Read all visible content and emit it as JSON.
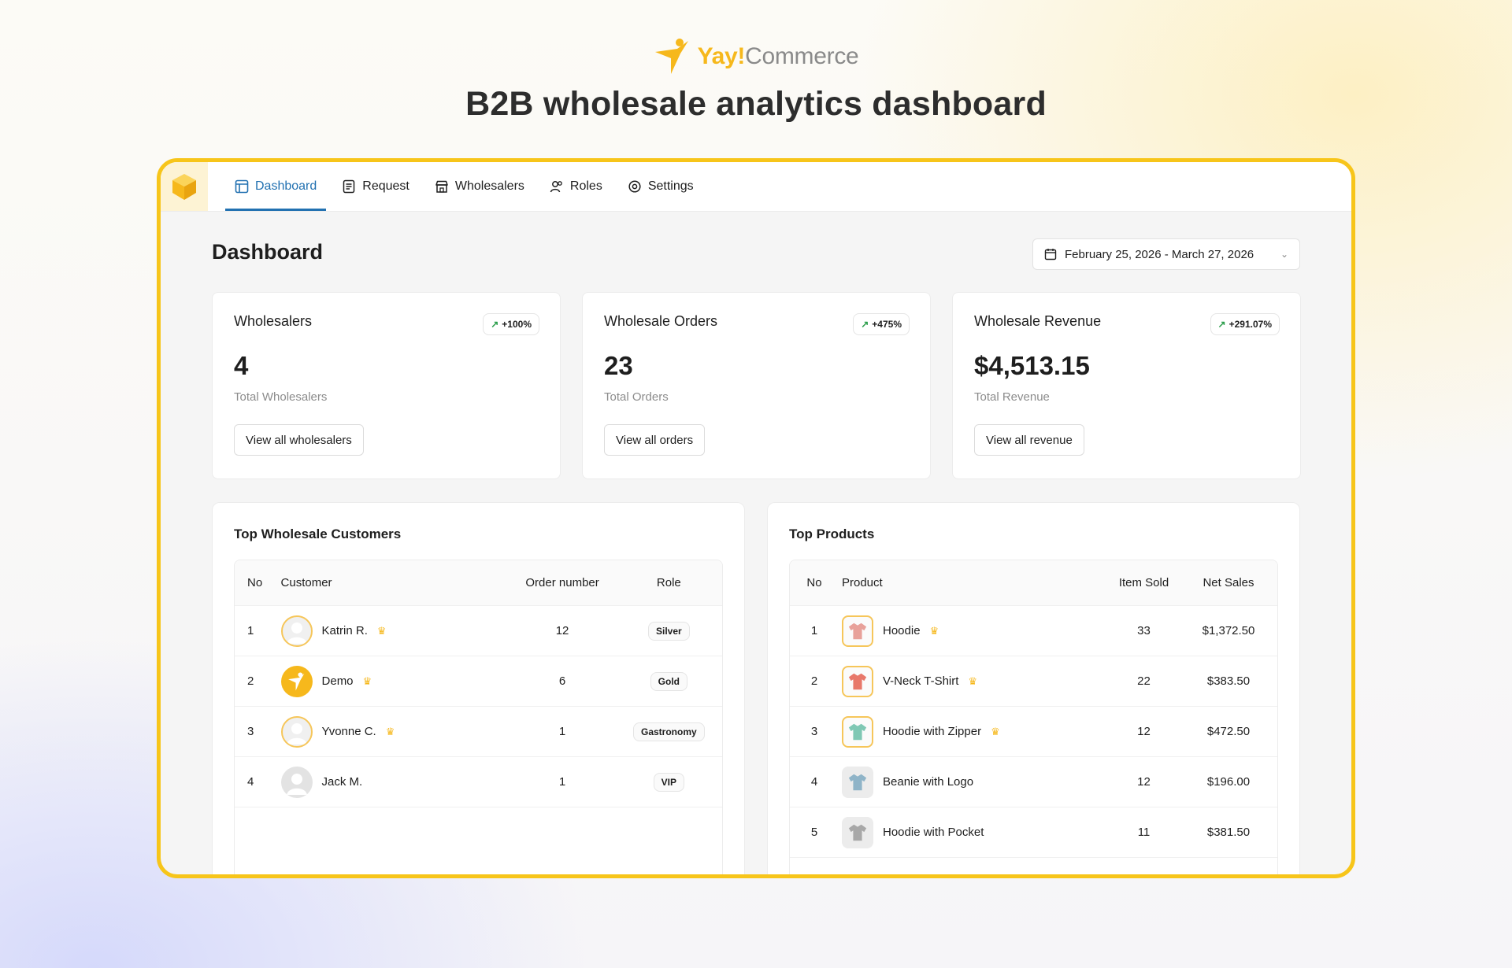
{
  "brand": {
    "yay": "Yay!",
    "commerce": "Commerce",
    "accent": "#f6b81c"
  },
  "headline": "B2B wholesale analytics dashboard",
  "nav": [
    {
      "label": "Dashboard",
      "icon": "layout-icon",
      "active": true
    },
    {
      "label": "Request",
      "icon": "document-icon"
    },
    {
      "label": "Wholesalers",
      "icon": "store-icon"
    },
    {
      "label": "Roles",
      "icon": "users-icon"
    },
    {
      "label": "Settings",
      "icon": "gear-icon"
    }
  ],
  "page": {
    "title": "Dashboard",
    "date_range": "February 25, 2026 - March 27, 2026"
  },
  "stats": [
    {
      "title": "Wholesalers",
      "change": "+100%",
      "value": "4",
      "sub": "Total Wholesalers",
      "button": "View all wholesalers"
    },
    {
      "title": "Wholesale Orders",
      "change": "+475%",
      "value": "23",
      "sub": "Total Orders",
      "button": "View all orders"
    },
    {
      "title": "Wholesale Revenue",
      "change": "+291.07%",
      "value": "$4,513.15",
      "sub": "Total Revenue",
      "button": "View all revenue"
    }
  ],
  "customers": {
    "title": "Top Wholesale Customers",
    "headers": {
      "no": "No",
      "customer": "Customer",
      "orders": "Order number",
      "role": "Role"
    },
    "rows": [
      {
        "no": "1",
        "name": "Katrin R.",
        "orders": "12",
        "role": "Silver",
        "crown": true,
        "avatar": "ring"
      },
      {
        "no": "2",
        "name": "Demo",
        "orders": "6",
        "role": "Gold",
        "crown": true,
        "avatar": "gold"
      },
      {
        "no": "3",
        "name": "Yvonne C.",
        "orders": "1",
        "role": "Gastronomy",
        "crown": true,
        "avatar": "ring"
      },
      {
        "no": "4",
        "name": "Jack M.",
        "orders": "1",
        "role": "VIP",
        "crown": false,
        "avatar": "plain"
      }
    ]
  },
  "products": {
    "title": "Top Products",
    "headers": {
      "no": "No",
      "product": "Product",
      "sold": "Item Sold",
      "sales": "Net Sales"
    },
    "rows": [
      {
        "no": "1",
        "name": "Hoodie",
        "sold": "33",
        "sales": "$1,372.50",
        "crown": true,
        "thumb": "hl",
        "color": "#e8a19a"
      },
      {
        "no": "2",
        "name": "V-Neck T-Shirt",
        "sold": "22",
        "sales": "$383.50",
        "crown": true,
        "thumb": "hl",
        "color": "#e8786a"
      },
      {
        "no": "3",
        "name": "Hoodie with Zipper",
        "sold": "12",
        "sales": "$472.50",
        "crown": true,
        "thumb": "hl",
        "color": "#7fc8b4"
      },
      {
        "no": "4",
        "name": "Beanie with Logo",
        "sold": "12",
        "sales": "$196.00",
        "crown": false,
        "thumb": "pl",
        "color": "#8fb4c8"
      },
      {
        "no": "5",
        "name": "Hoodie with Pocket",
        "sold": "11",
        "sales": "$381.50",
        "crown": false,
        "thumb": "pl",
        "color": "#a8a8a8"
      }
    ]
  }
}
